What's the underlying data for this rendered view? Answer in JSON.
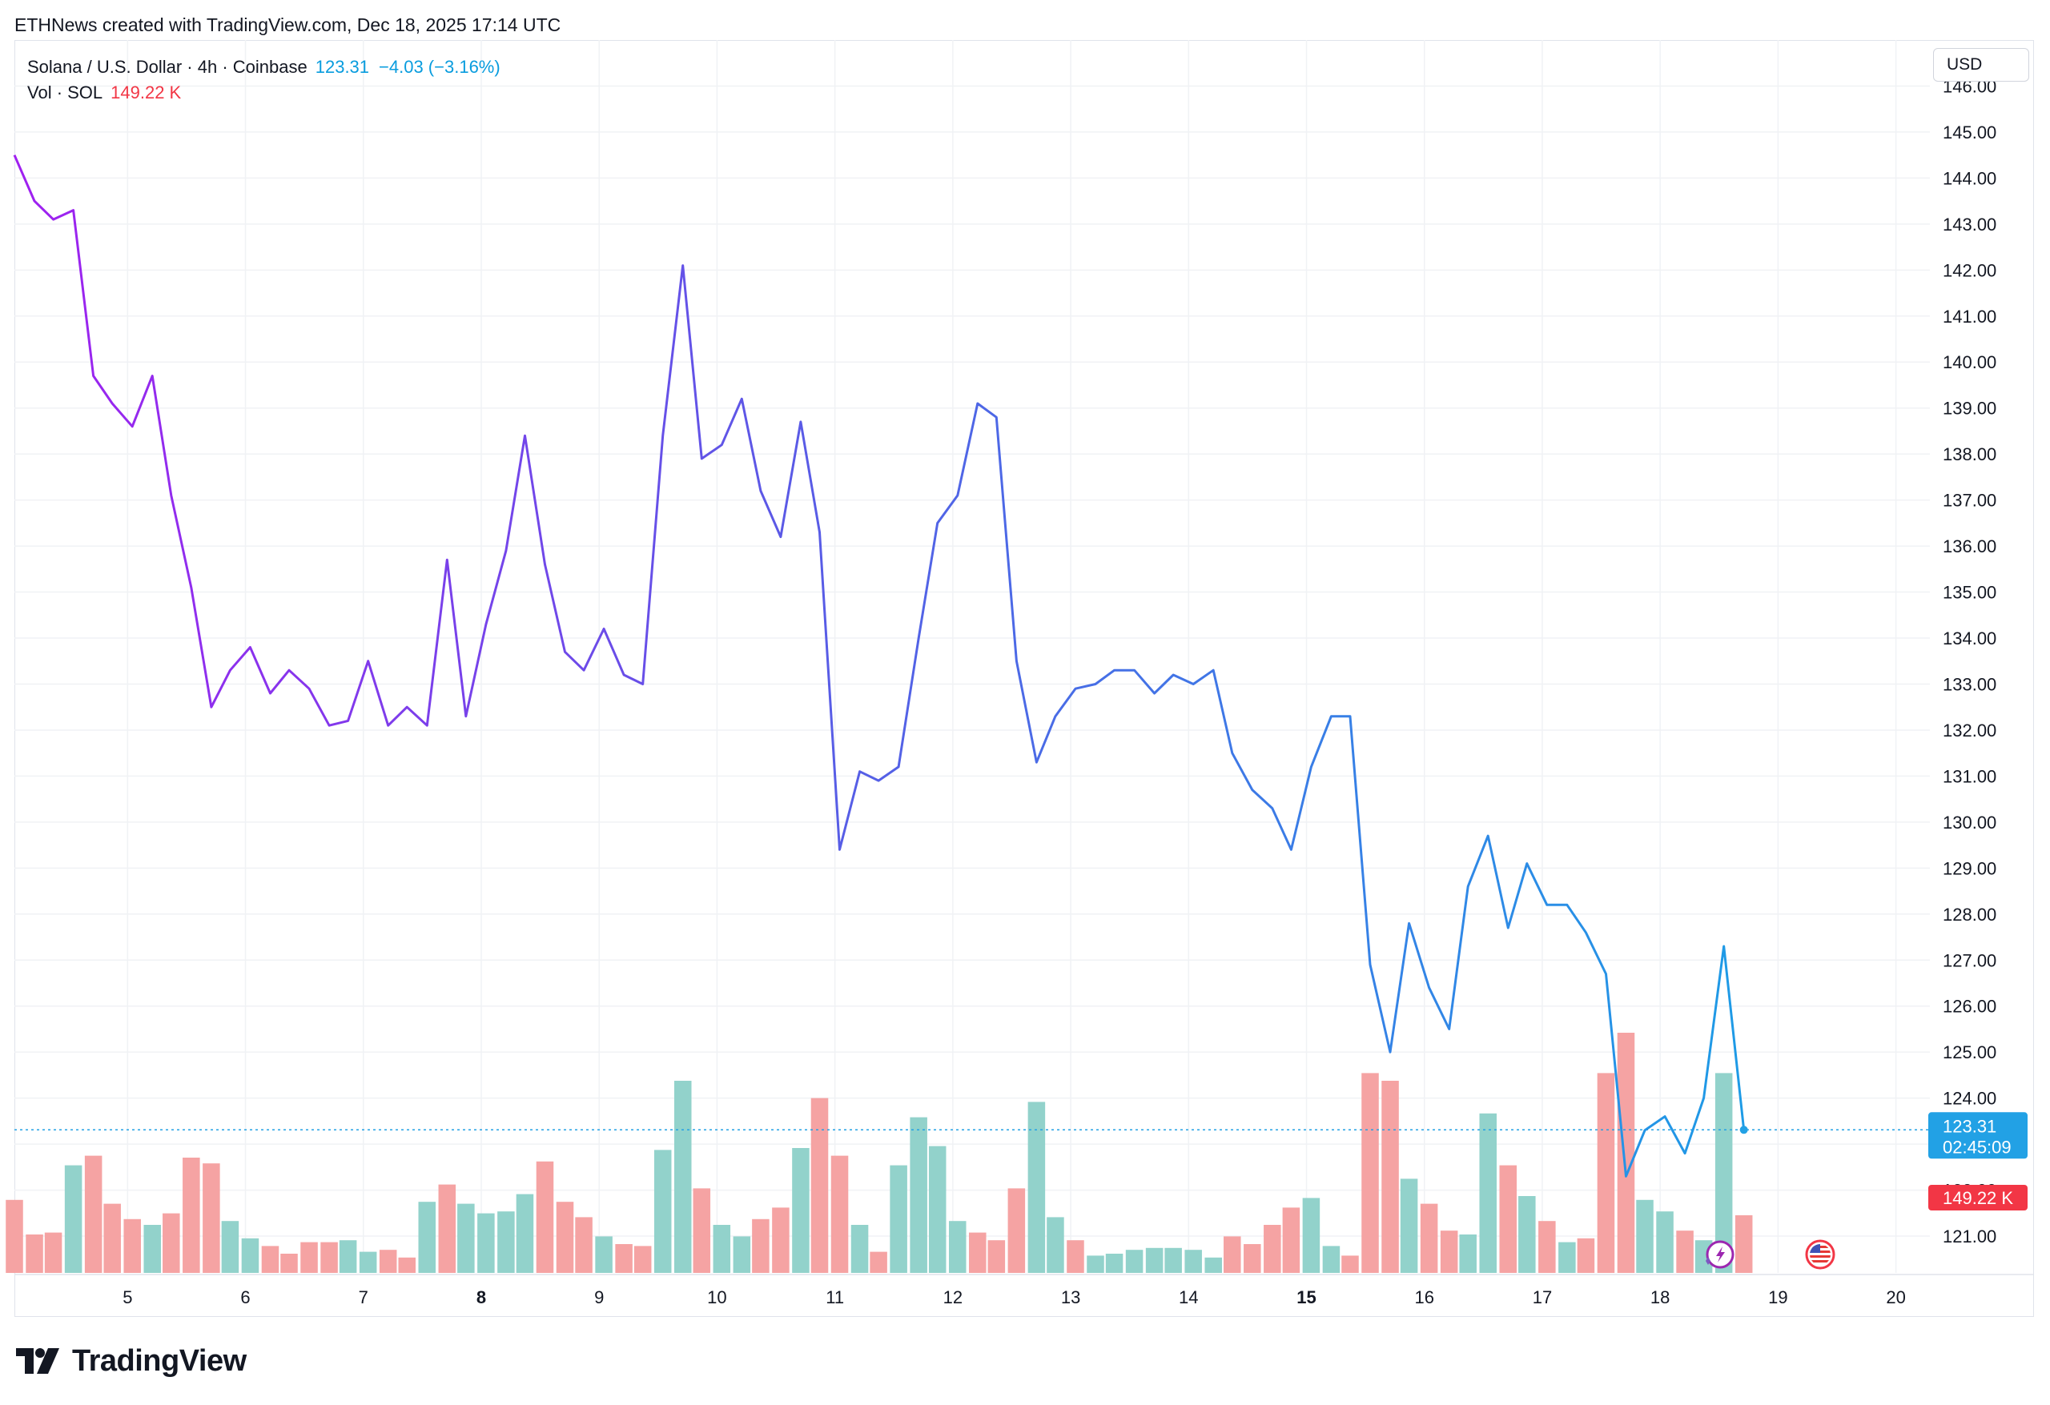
{
  "credit": "ETHNews created with TradingView.com, Dec 18, 2025 17:14 UTC",
  "legend": {
    "symbol": "Solana / U.S. Dollar · 4h · Coinbase",
    "last_price": "123.31",
    "change": "−4.03 (−3.16%)",
    "volume_label": "Vol · SOL",
    "volume_value": "149.22 K"
  },
  "currency_button": "USD",
  "brand": "TradingView",
  "badges": {
    "price_value": "123.31",
    "price_countdown": "02:45:09",
    "volume_value": "149.22 K"
  },
  "colors": {
    "line_start": "#a020f0",
    "line_mid": "#5a5ae6",
    "line_end": "#1e9be6",
    "vol_up": "#92d2cb",
    "vol_down": "#f5a3a3",
    "price_badge": "#22a1e5",
    "volume_badge": "#f23645",
    "grid": "#f0f2f5"
  },
  "icons": [
    "tradingview-logo-icon",
    "sparkle-lightning-icon",
    "us-flag-icon"
  ],
  "chart_data": {
    "type": "line",
    "y_axis": {
      "ticks": [
        "121.00",
        "122.00",
        "123.00",
        "124.00",
        "125.00",
        "126.00",
        "127.00",
        "128.00",
        "129.00",
        "130.00",
        "131.00",
        "132.00",
        "133.00",
        "134.00",
        "135.00",
        "136.00",
        "137.00",
        "138.00",
        "139.00",
        "140.00",
        "141.00",
        "142.00",
        "143.00",
        "144.00",
        "145.00",
        "146.00"
      ],
      "range": [
        120.2,
        147.0
      ]
    },
    "x_axis": {
      "labels": [
        {
          "text": "5",
          "day": 5,
          "bold": false
        },
        {
          "text": "6",
          "day": 6,
          "bold": false
        },
        {
          "text": "7",
          "day": 7,
          "bold": false
        },
        {
          "text": "8",
          "day": 8,
          "bold": true
        },
        {
          "text": "9",
          "day": 9,
          "bold": false
        },
        {
          "text": "10",
          "day": 10,
          "bold": false
        },
        {
          "text": "11",
          "day": 11,
          "bold": false
        },
        {
          "text": "12",
          "day": 12,
          "bold": false
        },
        {
          "text": "13",
          "day": 13,
          "bold": false
        },
        {
          "text": "14",
          "day": 14,
          "bold": false
        },
        {
          "text": "15",
          "day": 15,
          "bold": true
        },
        {
          "text": "16",
          "day": 16,
          "bold": false
        },
        {
          "text": "17",
          "day": 17,
          "bold": false
        },
        {
          "text": "18",
          "day": 18,
          "bold": false
        },
        {
          "text": "19",
          "day": 19,
          "bold": false
        },
        {
          "text": "20",
          "day": 20,
          "bold": false
        }
      ],
      "range": [
        4.04,
        20.22
      ]
    },
    "grid": true,
    "price_series": {
      "name": "Solana / U.S. Dollar",
      "x": [
        4.04,
        4.21,
        4.37,
        4.54,
        4.71,
        4.87,
        5.04,
        5.21,
        5.37,
        5.54,
        5.71,
        5.87,
        6.04,
        6.21,
        6.37,
        6.54,
        6.71,
        6.87,
        7.04,
        7.21,
        7.37,
        7.54,
        7.71,
        7.87,
        8.04,
        8.21,
        8.37,
        8.54,
        8.71,
        8.87,
        9.04,
        9.21,
        9.37,
        9.54,
        9.71,
        9.87,
        10.04,
        10.21,
        10.37,
        10.54,
        10.71,
        10.87,
        11.04,
        11.21,
        11.37,
        11.54,
        11.71,
        11.87,
        12.04,
        12.21,
        12.37,
        12.54,
        12.71,
        12.87,
        13.04,
        13.21,
        13.37,
        13.54,
        13.71,
        13.87,
        14.04,
        14.21,
        14.37,
        14.54,
        14.71,
        14.87,
        15.04,
        15.21,
        15.37,
        15.54,
        15.71,
        15.87,
        16.04,
        16.21,
        16.37,
        16.54,
        16.71,
        16.87,
        17.04,
        17.21,
        17.37,
        17.54,
        17.71,
        17.87,
        18.04,
        18.21,
        18.37,
        18.54,
        18.71
      ],
      "y": [
        144.5,
        143.5,
        143.1,
        143.3,
        139.7,
        139.1,
        138.6,
        139.7,
        137.1,
        135.1,
        132.5,
        133.3,
        133.8,
        132.8,
        133.3,
        132.9,
        132.1,
        132.2,
        133.5,
        132.1,
        132.5,
        132.1,
        135.7,
        132.3,
        134.3,
        135.9,
        138.4,
        135.6,
        133.7,
        133.3,
        134.2,
        133.2,
        133.0,
        138.4,
        142.1,
        137.9,
        138.2,
        139.2,
        137.2,
        136.2,
        138.7,
        136.3,
        129.4,
        131.1,
        130.9,
        131.2,
        134.0,
        136.5,
        137.1,
        139.1,
        138.8,
        133.5,
        131.3,
        132.3,
        132.9,
        133.0,
        133.3,
        133.3,
        132.8,
        133.2,
        133.0,
        133.3,
        131.5,
        130.7,
        130.3,
        129.4,
        131.2,
        132.3,
        132.3,
        126.9,
        125.0,
        127.8,
        126.4,
        125.5,
        128.6,
        129.7,
        127.7,
        129.1,
        128.2,
        128.2,
        127.6,
        126.7,
        122.3,
        123.3,
        123.6,
        122.8,
        124.0,
        127.3,
        123.31
      ]
    },
    "volume_series": {
      "name": "Vol · SOL",
      "direction": [
        "down",
        "down",
        "down",
        "up",
        "down",
        "down",
        "down",
        "up",
        "down",
        "down",
        "down",
        "up",
        "up",
        "down",
        "down",
        "down",
        "down",
        "up",
        "up",
        "down",
        "down",
        "up",
        "down",
        "up",
        "up",
        "up",
        "up",
        "down",
        "down",
        "down",
        "up",
        "down",
        "down",
        "up",
        "up",
        "down",
        "up",
        "up",
        "down",
        "down",
        "up",
        "down",
        "down",
        "up",
        "down",
        "up",
        "up",
        "up",
        "up",
        "down",
        "down",
        "down",
        "up",
        "up",
        "down",
        "up",
        "up",
        "up",
        "up",
        "up",
        "up",
        "up",
        "down",
        "down",
        "down",
        "down",
        "up",
        "up",
        "down",
        "down",
        "down",
        "up",
        "down",
        "down",
        "up",
        "up",
        "down",
        "up",
        "down",
        "up",
        "down",
        "down",
        "down",
        "up",
        "up",
        "down",
        "up",
        "up",
        "down"
      ],
      "relative": [
        0.38,
        0.2,
        0.21,
        0.56,
        0.61,
        0.36,
        0.28,
        0.25,
        0.31,
        0.6,
        0.57,
        0.27,
        0.18,
        0.14,
        0.1,
        0.16,
        0.16,
        0.17,
        0.11,
        0.12,
        0.08,
        0.37,
        0.46,
        0.36,
        0.31,
        0.32,
        0.41,
        0.58,
        0.37,
        0.29,
        0.19,
        0.15,
        0.14,
        0.64,
        1.0,
        0.44,
        0.25,
        0.19,
        0.28,
        0.34,
        0.65,
        0.91,
        0.61,
        0.25,
        0.11,
        0.56,
        0.81,
        0.66,
        0.27,
        0.21,
        0.17,
        0.44,
        0.89,
        0.29,
        0.17,
        0.09,
        0.1,
        0.12,
        0.13,
        0.13,
        0.12,
        0.08,
        0.19,
        0.15,
        0.25,
        0.34,
        0.39,
        0.14,
        0.09,
        1.04,
        1.0,
        0.49,
        0.36,
        0.22,
        0.2,
        0.83,
        0.56,
        0.4,
        0.27,
        0.16,
        0.18,
        1.04,
        1.25,
        0.38,
        0.32,
        0.22,
        0.17,
        1.04,
        0.3
      ]
    },
    "last_value": 123.31
  }
}
